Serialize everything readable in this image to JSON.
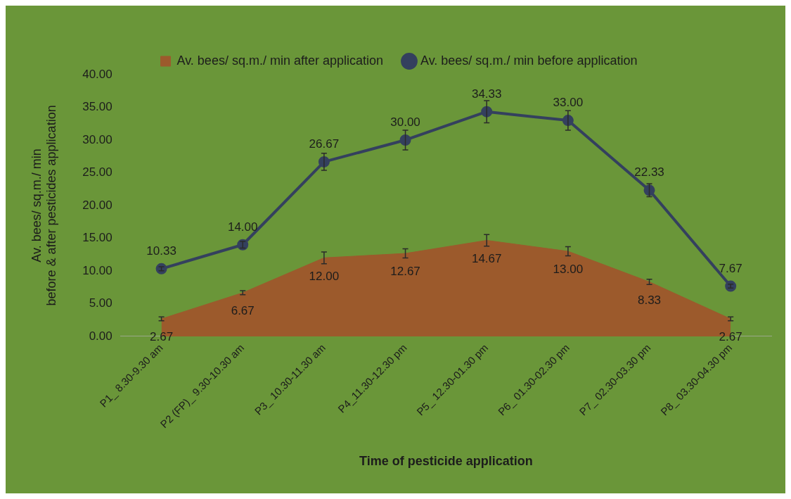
{
  "chart_data": {
    "type": "area",
    "xlabel": "Time of pesticide application",
    "ylabel": "Av. bees/ sq.m./ min\nbefore & after pesticides application",
    "categories": [
      "P1_ 8.30-9.30 am",
      "P2 (FP)_ 9.30-10.30 am",
      "P3_ 10.30-11.30 am",
      "P4_11.30-12.30 pm",
      "P5_ 12.30-01.30 pm",
      "P6_ 01.30-02.30 pm",
      "P7_ 02.30-03.30 pm",
      "P8_ 03.30-04.30 pm"
    ],
    "series": [
      {
        "name": "Av. bees/ sq.m./ min after application",
        "type": "area",
        "color": "#9c5a2c",
        "values": [
          2.67,
          6.67,
          12,
          12.67,
          14.67,
          13,
          8.33,
          2.67
        ],
        "value_labels": [
          "2.67",
          "6.67",
          "12.00",
          "12.67",
          "14.67",
          "13.00",
          "8.33",
          "2.67"
        ],
        "errors": [
          0.3,
          0.3,
          0.9,
          0.7,
          0.9,
          0.7,
          0.4,
          0.3
        ]
      },
      {
        "name": "Av. bees/ sq.m./ min before application",
        "type": "line",
        "color": "#34405e",
        "values": [
          10.33,
          14,
          26.67,
          30,
          34.33,
          33,
          22.33,
          7.67
        ],
        "value_labels": [
          "10.33",
          "14.00",
          "26.67",
          "30.00",
          "34.33",
          "33.00",
          "22.33",
          "7.67"
        ],
        "errors": [
          0.3,
          0.5,
          1.3,
          1.5,
          1.7,
          1.5,
          1,
          0.3
        ],
        "marker": "circle"
      }
    ],
    "ylim": [
      0,
      40
    ],
    "yticks": [
      {
        "value": 0,
        "label": "0.00"
      },
      {
        "value": 5,
        "label": "5.00"
      },
      {
        "value": 10,
        "label": "10.00"
      },
      {
        "value": 15,
        "label": "15.00"
      },
      {
        "value": 20,
        "label": "20.00"
      },
      {
        "value": 25,
        "label": "25.00"
      },
      {
        "value": 30,
        "label": "30.00"
      },
      {
        "value": 35,
        "label": "35.00"
      },
      {
        "value": 40,
        "label": "40.00"
      }
    ],
    "grid": false,
    "legend": "top"
  }
}
